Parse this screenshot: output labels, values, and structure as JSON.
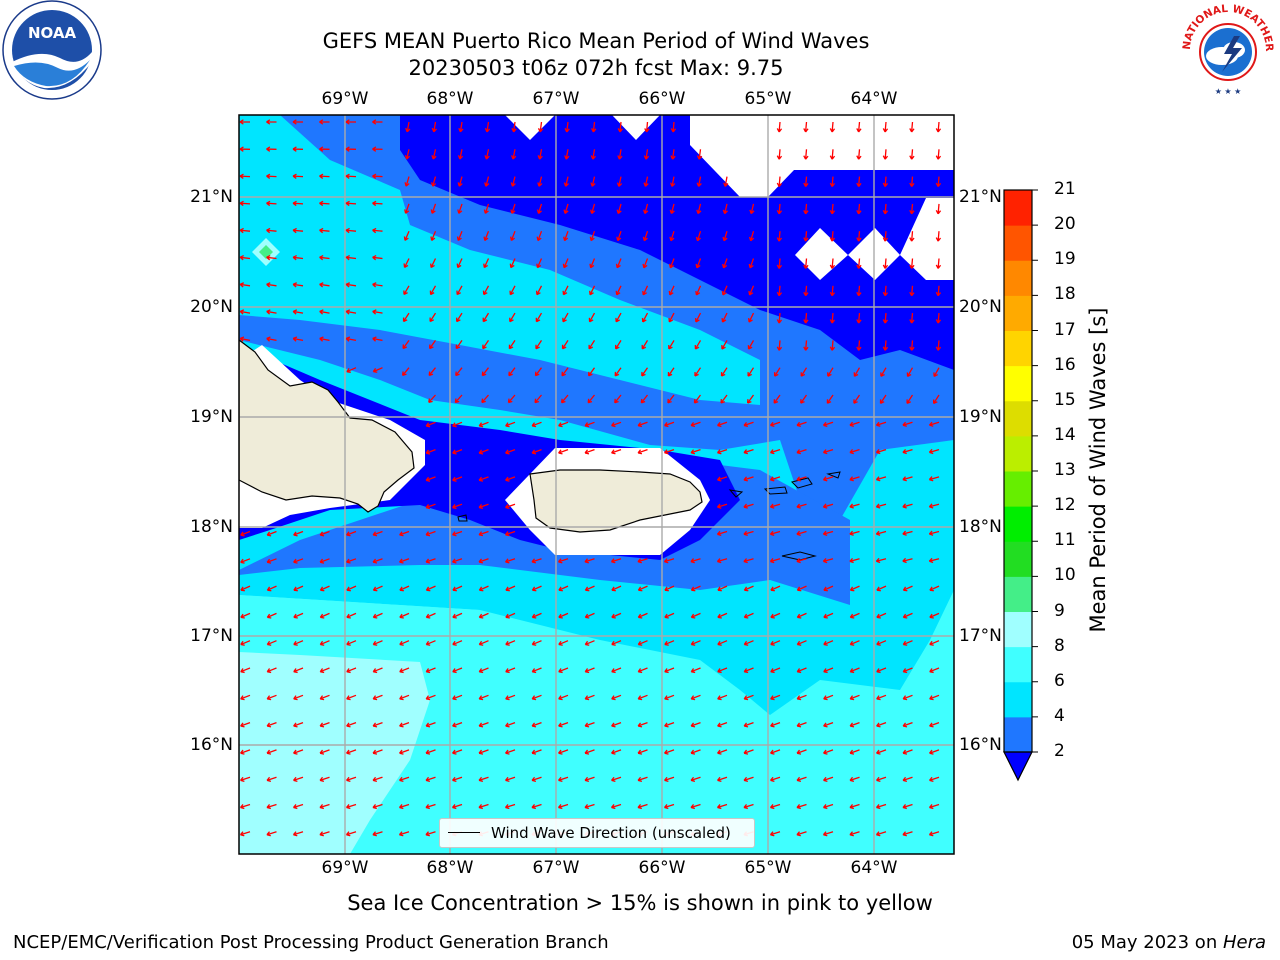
{
  "header": {
    "title_line1": "GEFS MEAN Puerto Rico Mean Period of Wind Waves",
    "title_line2": "20230503 t06z 072h fcst   Max: 9.75"
  },
  "logos": {
    "noaa_text": "NOAA",
    "nws_text": "NATIONAL WEATHER SERVICE"
  },
  "axes": {
    "lon_labels": [
      "69°W",
      "68°W",
      "67°W",
      "66°W",
      "65°W",
      "64°W"
    ],
    "lat_labels": [
      "21°N",
      "20°N",
      "19°N",
      "18°N",
      "17°N",
      "16°N"
    ]
  },
  "legend": {
    "label": "Wind Wave Direction (unscaled)"
  },
  "colorbar": {
    "title": "Mean Period of Wind Waves [s]",
    "ticks": [
      "2",
      "4",
      "6",
      "8",
      "9",
      "10",
      "11",
      "12",
      "13",
      "14",
      "15",
      "16",
      "17",
      "18",
      "19",
      "20",
      "21"
    ],
    "colors": [
      "#1f77ff",
      "#00e5ff",
      "#40ffff",
      "#a0ffff",
      "#44ee88",
      "#22dd22",
      "#00ee00",
      "#66ee00",
      "#bbee00",
      "#dddd00",
      "#ffff00",
      "#ffd400",
      "#ffaa00",
      "#ff8800",
      "#ff5500",
      "#ff2200",
      "#ff0000"
    ],
    "under_color": "#0000ff"
  },
  "note": "Sea Ice Concentration > 15% is shown in pink to yellow",
  "footer": {
    "left": "NCEP/EMC/Verification Post Processing Product Generation Branch",
    "right_prefix": "05 May 2023 on ",
    "right_host": "Hera"
  },
  "map_colors": {
    "deep": "#0000ff",
    "blue": "#1f77ff",
    "cyan": "#00e5ff",
    "lightcyan": "#40ffff",
    "palecyan": "#a0ffff",
    "land": "#efecd9",
    "arrow": "#ff0000"
  }
}
